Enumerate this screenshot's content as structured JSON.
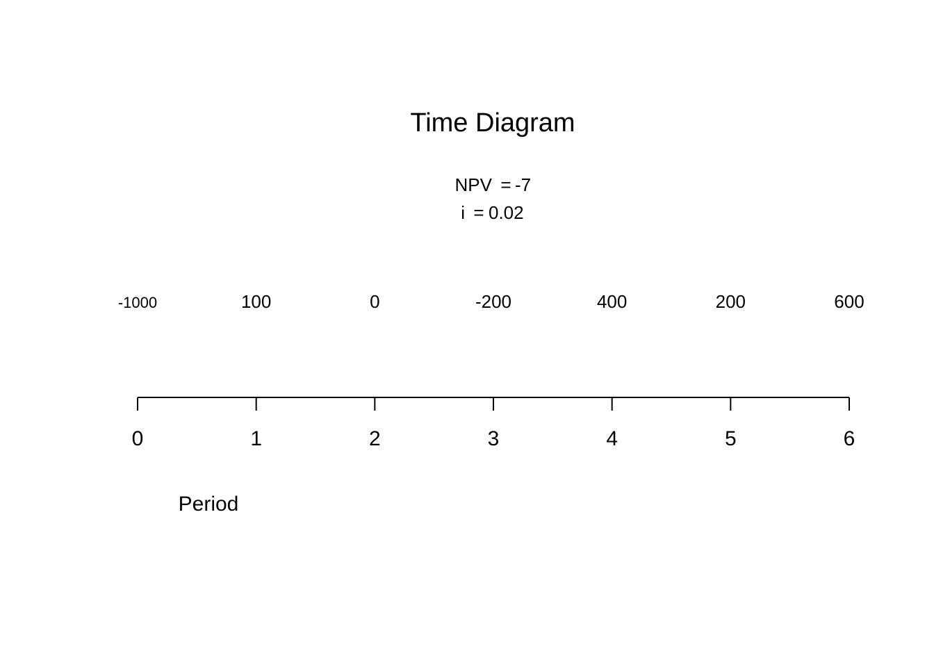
{
  "chart_data": {
    "type": "time-diagram",
    "title": "Time Diagram",
    "npv": {
      "label": "NPV",
      "value": "-7"
    },
    "rate": {
      "label": "i",
      "value": "0.02"
    },
    "periods": [
      "0",
      "1",
      "2",
      "3",
      "4",
      "5",
      "6"
    ],
    "cash_flows": [
      "-1000",
      "100",
      "0",
      "-200",
      "400",
      "200",
      "600"
    ],
    "xlabel": "Period"
  }
}
